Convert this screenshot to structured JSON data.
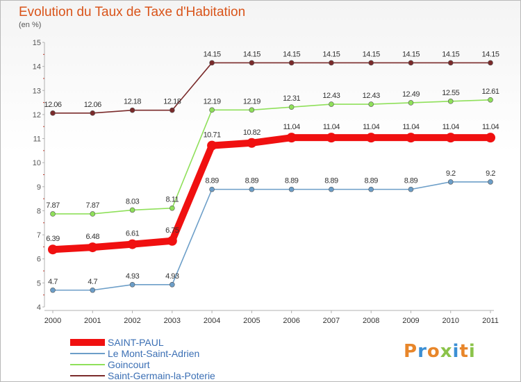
{
  "title": "Evolution du Taux de Taxe d'Habitation",
  "unit": "(en %)",
  "logo": "Proxiti",
  "chart_data": {
    "type": "line",
    "title": "Evolution du Taux de Taxe d'Habitation",
    "ylabel": "(en %)",
    "xlabel": "",
    "x": [
      "2000",
      "2001",
      "2002",
      "2003",
      "2004",
      "2005",
      "2006",
      "2007",
      "2008",
      "2009",
      "2010",
      "2011"
    ],
    "ylim": [
      4,
      15
    ],
    "yticks": [
      4,
      5,
      6,
      7,
      8,
      9,
      10,
      11,
      12,
      13,
      14,
      15
    ],
    "grid": false,
    "legend_position": "bottom-left",
    "series": [
      {
        "name": "SAINT-PAUL",
        "color": "#f01010",
        "values": [
          6.39,
          6.48,
          6.61,
          6.75,
          10.71,
          10.82,
          11.04,
          11.04,
          11.04,
          11.04,
          11.04,
          11.04
        ],
        "labels": [
          "6.39",
          "6.48",
          "6.61",
          "6.75",
          "10.71",
          "10.82",
          "11.04",
          "11.04",
          "11.04",
          "11.04",
          "11.04",
          "11.04"
        ]
      },
      {
        "name": "Le Mont-Saint-Adrien",
        "color": "#6c9ec8",
        "values": [
          4.7,
          4.7,
          4.93,
          4.93,
          8.89,
          8.89,
          8.89,
          8.89,
          8.89,
          8.89,
          9.2,
          9.2
        ],
        "labels": [
          "4.7",
          "4.7",
          "4.93",
          "4.93",
          "8.89",
          "8.89",
          "8.89",
          "8.89",
          "8.89",
          "8.89",
          "9.2",
          "9.2"
        ]
      },
      {
        "name": "Goincourt",
        "color": "#8fe05a",
        "values": [
          7.87,
          7.87,
          8.03,
          8.11,
          12.19,
          12.19,
          12.31,
          12.43,
          12.43,
          12.49,
          12.55,
          12.61
        ],
        "labels": [
          "7.87",
          "7.87",
          "8.03",
          "8.11",
          "12.19",
          "12.19",
          "12.31",
          "12.43",
          "12.43",
          "12.49",
          "12.55",
          "12.61"
        ]
      },
      {
        "name": "Saint-Germain-la-Poterie",
        "color": "#7a2a2a",
        "values": [
          12.06,
          12.06,
          12.18,
          12.18,
          14.15,
          14.15,
          14.15,
          14.15,
          14.15,
          14.15,
          14.15,
          14.15
        ],
        "labels": [
          "12.06",
          "12.06",
          "12.18",
          "12.18",
          "14.15",
          "14.15",
          "14.15",
          "14.15",
          "14.15",
          "14.15",
          "14.15",
          "14.15"
        ]
      }
    ]
  }
}
